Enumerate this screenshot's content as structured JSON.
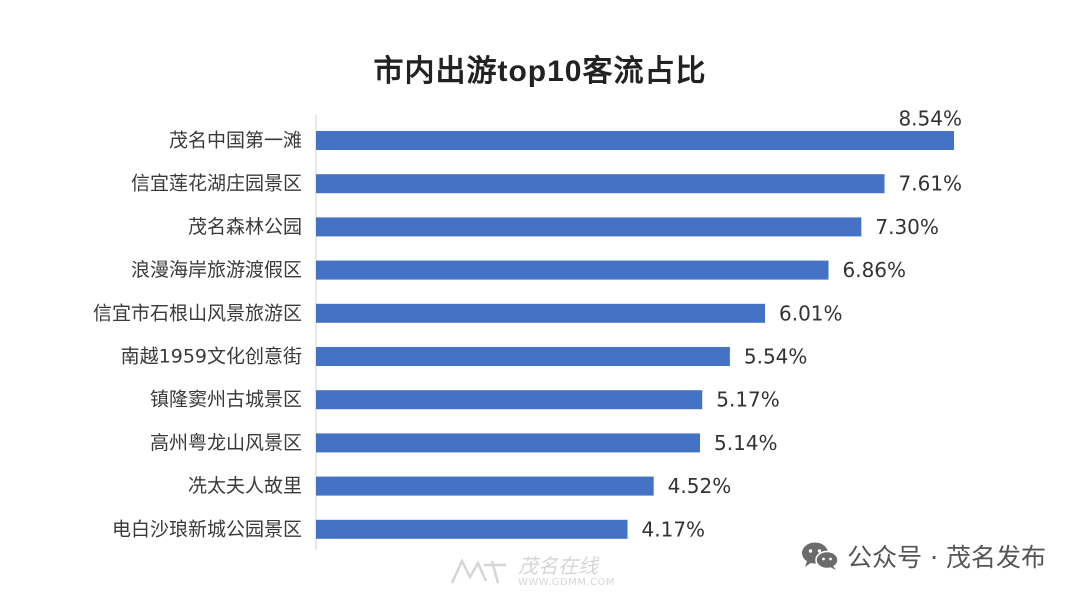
{
  "chart_data": {
    "type": "bar",
    "orientation": "horizontal",
    "title": "市内出游top10客流占比",
    "categories": [
      "茂名中国第一滩",
      "信宜莲花湖庄园景区",
      "茂名森林公园",
      "浪漫海岸旅游渡假区",
      "信宜市石根山风景旅游区",
      "南越1959文化创意街",
      "镇隆窦州古城景区",
      "高州粤龙山风景区",
      "冼太夫人故里",
      "电白沙琅新城公园景区"
    ],
    "values": [
      8.54,
      7.61,
      7.3,
      6.86,
      6.01,
      5.54,
      5.17,
      5.14,
      4.52,
      4.17
    ],
    "value_labels": [
      "8.54%",
      "7.61%",
      "7.30%",
      "6.86%",
      "6.01%",
      "5.54%",
      "5.17%",
      "5.14%",
      "4.52%",
      "4.17%"
    ],
    "xlim": [
      0,
      8.54
    ],
    "bar_color": "#4472c4",
    "grid": false,
    "legend": "none",
    "xlabel": "",
    "ylabel": ""
  },
  "watermark": {
    "icon": "wechat-icon",
    "text": "公众号 · 茂名发布"
  },
  "site_logo": {
    "name": "茂名在线",
    "url": "WWW.GDMM.COM"
  }
}
